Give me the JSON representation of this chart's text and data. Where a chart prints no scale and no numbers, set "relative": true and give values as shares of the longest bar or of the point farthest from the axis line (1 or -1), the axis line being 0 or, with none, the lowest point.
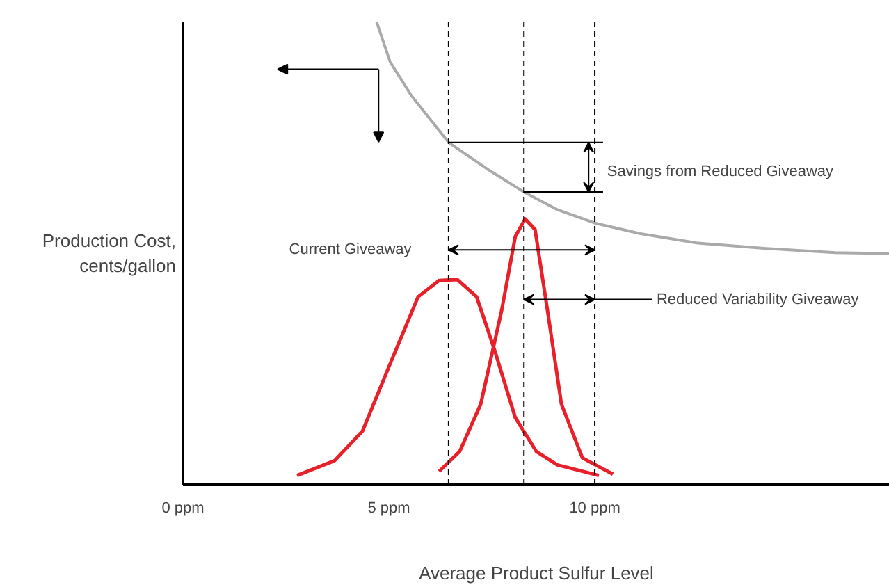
{
  "chart_data": {
    "type": "line",
    "relative": true,
    "xlabel": "Average Product Sulfur Level",
    "ylabel": "Production Cost,\ncents/gallon",
    "xlim": [
      0,
      17.16
    ],
    "xticks": [
      {
        "value": 0,
        "label": "0 ppm"
      },
      {
        "value": 5,
        "label": "5 ppm"
      },
      {
        "value": 10,
        "label": "10 ppm"
      }
    ],
    "grid": false,
    "marker": "none",
    "line_style": "solid",
    "series": [
      {
        "color": "#aaaaaa",
        "x": [
          4.7,
          5.03,
          5.54,
          6.45,
          7.4,
          8.28,
          9.09,
          10.0,
          11.11,
          12.47,
          14.16,
          15.84,
          17.16
        ],
        "values": [
          1.0,
          0.913,
          0.841,
          0.739,
          0.681,
          0.632,
          0.594,
          0.565,
          0.542,
          0.522,
          0.51,
          0.501,
          0.499
        ]
      },
      {
        "color": "#e8202a",
        "x": [
          2.77,
          3.68,
          4.36,
          5.03,
          5.71,
          6.22,
          6.66,
          7.13,
          7.57,
          8.07,
          8.58,
          9.09,
          10.1
        ],
        "values": [
          0.02,
          0.052,
          0.116,
          0.261,
          0.406,
          0.441,
          0.443,
          0.406,
          0.29,
          0.145,
          0.072,
          0.043,
          0.02
        ]
      },
      {
        "color": "#e8202a",
        "x": [
          6.22,
          6.72,
          7.23,
          7.74,
          8.07,
          8.31,
          8.55,
          8.85,
          9.19,
          9.7,
          10.44
        ],
        "values": [
          0.029,
          0.072,
          0.174,
          0.377,
          0.536,
          0.574,
          0.551,
          0.377,
          0.174,
          0.058,
          0.023
        ]
      }
    ],
    "ref_lines": [
      {
        "axis": "x",
        "value": 6.45,
        "color": "#000000",
        "line_style": "dashed"
      },
      {
        "axis": "x",
        "value": 8.28,
        "color": "#000000",
        "line_style": "dashed"
      },
      {
        "axis": "x",
        "value": 10,
        "color": "#000000",
        "line_style": "dashed"
      },
      {
        "axis": "y",
        "value": 0.739,
        "color": "#000000",
        "line_style": "solid"
      },
      {
        "axis": "y",
        "value": 0.632,
        "color": "#000000",
        "line_style": "solid"
      }
    ],
    "annotations": [
      "Current Giveaway",
      "Savings from Reduced Giveaway",
      "Reduced Variability Giveaway"
    ]
  }
}
